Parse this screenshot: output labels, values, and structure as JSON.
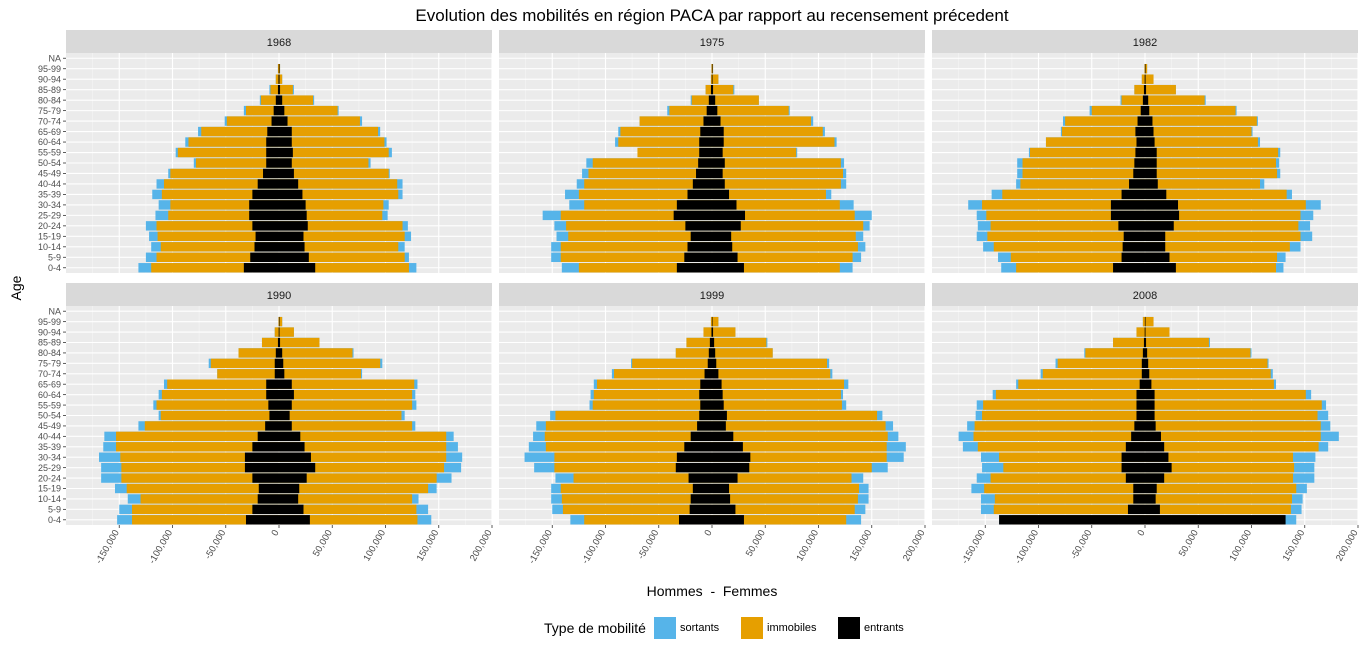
{
  "chart_data": {
    "type": "bar",
    "title": "Evolution des mobilités en région PACA par rapport au recensement précedent",
    "xlabel": "Hommes  -  Femmes",
    "ylabel": "Age",
    "xlim": [
      -200000,
      200000
    ],
    "x_ticks": [
      -150000,
      -100000,
      -50000,
      0,
      50000,
      100000,
      150000,
      200000
    ],
    "x_tick_labels": [
      "-150,000",
      "-100,000",
      "-50,000",
      "0",
      "50,000",
      "100,000",
      "150,000",
      "200,000"
    ],
    "categories": [
      "0-4",
      "5-9",
      "10-14",
      "15-19",
      "20-24",
      "25-29",
      "30-34",
      "35-39",
      "40-44",
      "45-49",
      "50-54",
      "55-59",
      "60-64",
      "65-69",
      "70-74",
      "75-79",
      "80-84",
      "85-89",
      "90-94",
      "95-99",
      "NA"
    ],
    "legend": {
      "title": "Type de mobilité",
      "position": "bottom",
      "items": [
        {
          "key": "sortants",
          "label": "sortants",
          "color": "#56B4E9"
        },
        {
          "key": "immobiles",
          "label": "immobiles",
          "color": "#E69F00"
        },
        {
          "key": "entrants",
          "label": "entrants",
          "color": "#000000"
        }
      ]
    },
    "panels": [
      {
        "label": "1968",
        "men": {
          "sortants": [
            132000,
            125000,
            120000,
            122000,
            125000,
            116000,
            113000,
            119000,
            115000,
            104000,
            80000,
            97000,
            88000,
            76000,
            51000,
            33000,
            18000,
            9000,
            3000,
            1000,
            0
          ],
          "immobiles": [
            120000,
            115000,
            111000,
            114000,
            115000,
            104000,
            102000,
            110000,
            108000,
            102000,
            78000,
            95000,
            85000,
            73000,
            49000,
            31000,
            17000,
            8000,
            3000,
            1000,
            0
          ],
          "entrants": [
            33000,
            27000,
            23000,
            22000,
            25000,
            28000,
            28000,
            25000,
            20000,
            15000,
            12000,
            12000,
            12000,
            11000,
            7000,
            5000,
            3000,
            1000,
            500,
            200,
            0
          ]
        },
        "women": {
          "sortants": [
            129000,
            122000,
            118000,
            124000,
            121000,
            102000,
            103000,
            116000,
            116000,
            104000,
            86000,
            106000,
            101000,
            95000,
            78000,
            56000,
            33000,
            14000,
            3000,
            1000,
            0
          ],
          "immobiles": [
            122000,
            118000,
            112000,
            118000,
            116000,
            97000,
            98000,
            112000,
            111000,
            103000,
            84000,
            103000,
            99000,
            93000,
            76000,
            55000,
            32000,
            13000,
            3000,
            1000,
            0
          ],
          "entrants": [
            34000,
            28000,
            24000,
            23000,
            27000,
            26000,
            25000,
            22000,
            18000,
            14000,
            12000,
            13000,
            12000,
            12000,
            8000,
            5000,
            3000,
            1000,
            500,
            200,
            0
          ]
        }
      },
      {
        "label": "1975",
        "men": {
          "sortants": [
            141000,
            151000,
            151000,
            146000,
            148000,
            159000,
            134000,
            138000,
            127000,
            122000,
            118000,
            68000,
            91000,
            88000,
            68000,
            42000,
            20000,
            6000,
            1000,
            500,
            0
          ],
          "immobiles": [
            125000,
            142000,
            142000,
            135000,
            137000,
            142000,
            120000,
            125000,
            120000,
            116000,
            112000,
            70000,
            88000,
            86000,
            68000,
            40000,
            19000,
            6000,
            1000,
            500,
            0
          ],
          "entrants": [
            33000,
            26000,
            23000,
            20000,
            25000,
            36000,
            33000,
            23000,
            18000,
            15000,
            13000,
            12000,
            12000,
            11000,
            8000,
            5000,
            3000,
            1000,
            200,
            100,
            0
          ]
        },
        "women": {
          "sortants": [
            132000,
            140000,
            144000,
            142000,
            148000,
            150000,
            133000,
            112000,
            126000,
            126000,
            124000,
            80000,
            117000,
            106000,
            95000,
            73000,
            44000,
            21000,
            6000,
            1000,
            0
          ],
          "immobiles": [
            120000,
            132000,
            137000,
            135000,
            142000,
            134000,
            120000,
            107000,
            121000,
            123000,
            121000,
            79000,
            115000,
            104000,
            93000,
            72000,
            44000,
            20000,
            6000,
            1000,
            0
          ],
          "entrants": [
            30000,
            24000,
            19000,
            18000,
            27000,
            31000,
            23000,
            16000,
            12000,
            10000,
            12000,
            10000,
            11000,
            11000,
            8000,
            5000,
            3000,
            1000,
            300,
            100,
            0
          ]
        }
      },
      {
        "label": "1982",
        "men": {
          "sortants": [
            135000,
            138000,
            152000,
            158000,
            157000,
            158000,
            166000,
            144000,
            121000,
            120000,
            120000,
            109000,
            93000,
            79000,
            77000,
            52000,
            23000,
            10000,
            3000,
            500,
            0
          ],
          "immobiles": [
            121000,
            126000,
            142000,
            148000,
            145000,
            149000,
            153000,
            134000,
            117000,
            115000,
            115000,
            108000,
            93000,
            78000,
            75000,
            50000,
            22000,
            10000,
            3000,
            500,
            0
          ],
          "entrants": [
            30000,
            22000,
            21000,
            20000,
            25000,
            32000,
            32000,
            22000,
            15000,
            11000,
            10000,
            9000,
            8000,
            9000,
            7000,
            4000,
            2000,
            1000,
            300,
            100,
            0
          ]
        },
        "women": {
          "sortants": [
            130000,
            132000,
            146000,
            157000,
            155000,
            158000,
            165000,
            138000,
            112000,
            127000,
            126000,
            127000,
            108000,
            101000,
            106000,
            86000,
            57000,
            29000,
            8000,
            2000,
            0
          ],
          "immobiles": [
            123000,
            124000,
            136000,
            146000,
            144000,
            146000,
            151000,
            133000,
            108000,
            124000,
            123000,
            125000,
            106000,
            100000,
            105000,
            85000,
            56000,
            29000,
            8000,
            2000,
            0
          ],
          "entrants": [
            29000,
            23000,
            19000,
            19000,
            27000,
            32000,
            31000,
            20000,
            12000,
            11000,
            11000,
            11000,
            9000,
            8000,
            7000,
            4000,
            3000,
            1000,
            500,
            100,
            0
          ]
        }
      },
      {
        "label": "1990",
        "men": {
          "sortants": [
            152000,
            150000,
            142000,
            154000,
            167000,
            167000,
            169000,
            165000,
            164000,
            132000,
            113000,
            118000,
            113000,
            108000,
            58000,
            66000,
            38000,
            16000,
            4000,
            500,
            0
          ],
          "immobiles": [
            138000,
            138000,
            130000,
            143000,
            148000,
            148000,
            149000,
            153000,
            153000,
            126000,
            111000,
            115000,
            110000,
            105000,
            58000,
            64000,
            38000,
            16000,
            4000,
            500,
            0
          ],
          "entrants": [
            31000,
            25000,
            20000,
            19000,
            25000,
            32000,
            32000,
            25000,
            20000,
            13000,
            9000,
            10000,
            12000,
            12000,
            4000,
            4000,
            3000,
            1000,
            300,
            100,
            0
          ]
        },
        "women": {
          "sortants": [
            143000,
            140000,
            131000,
            148000,
            162000,
            171000,
            172000,
            168000,
            164000,
            128000,
            118000,
            129000,
            128000,
            130000,
            78000,
            97000,
            70000,
            38000,
            14000,
            3000,
            0
          ],
          "immobiles": [
            130000,
            129000,
            125000,
            140000,
            148000,
            155000,
            157000,
            157000,
            157000,
            125000,
            115000,
            125000,
            125000,
            127000,
            77000,
            95000,
            69000,
            38000,
            14000,
            3000,
            0
          ],
          "entrants": [
            29000,
            23000,
            18000,
            19000,
            26000,
            34000,
            30000,
            24000,
            20000,
            12000,
            10000,
            12000,
            14000,
            12000,
            5000,
            4000,
            3000,
            1000,
            300,
            100,
            0
          ]
        }
      },
      {
        "label": "1999",
        "men": {
          "sortants": [
            133000,
            150000,
            151000,
            151000,
            147000,
            167000,
            176000,
            172000,
            168000,
            165000,
            152000,
            115000,
            114000,
            111000,
            94000,
            76000,
            34000,
            24000,
            8000,
            1000,
            0
          ],
          "immobiles": [
            120000,
            140000,
            141000,
            142000,
            130000,
            148000,
            148000,
            156000,
            157000,
            156000,
            147000,
            112000,
            111000,
            108000,
            92000,
            75000,
            34000,
            24000,
            8000,
            1000,
            0
          ],
          "entrants": [
            31000,
            21000,
            20000,
            18000,
            22000,
            34000,
            33000,
            26000,
            20000,
            14000,
            12000,
            11000,
            12000,
            11000,
            7000,
            4000,
            3000,
            2000,
            500,
            100,
            0
          ]
        },
        "women": {
          "sortants": [
            140000,
            144000,
            147000,
            147000,
            142000,
            165000,
            180000,
            182000,
            175000,
            170000,
            160000,
            126000,
            123000,
            128000,
            113000,
            110000,
            57000,
            52000,
            22000,
            6000,
            0
          ],
          "immobiles": [
            126000,
            134000,
            137000,
            138000,
            131000,
            150000,
            164000,
            164000,
            165000,
            163000,
            155000,
            122000,
            121000,
            124000,
            111000,
            108000,
            57000,
            51000,
            22000,
            6000,
            0
          ],
          "entrants": [
            30000,
            22000,
            17000,
            16000,
            24000,
            35000,
            36000,
            29000,
            20000,
            13000,
            14000,
            11000,
            10000,
            9000,
            6000,
            4000,
            3000,
            2000,
            1000,
            200,
            0
          ]
        }
      },
      {
        "label": "2008",
        "men": {
          "sortants": [
            137000,
            154000,
            154000,
            163000,
            158000,
            153000,
            154000,
            171000,
            175000,
            167000,
            159000,
            158000,
            143000,
            121000,
            98000,
            84000,
            57000,
            30000,
            8000,
            2000,
            0
          ],
          "immobiles": [
            125000,
            142000,
            141000,
            151000,
            145000,
            133000,
            137000,
            157000,
            161000,
            160000,
            153000,
            152000,
            140000,
            119000,
            96000,
            82000,
            56000,
            30000,
            8000,
            2000,
            0
          ],
          "entrants": [
            137000,
            16000,
            11000,
            11000,
            18000,
            22000,
            22000,
            18000,
            13000,
            10000,
            8000,
            8000,
            8000,
            5000,
            3000,
            3000,
            2000,
            1000,
            300,
            100,
            0
          ]
        },
        "women": {
          "sortants": [
            142000,
            147000,
            148000,
            152000,
            159000,
            159000,
            160000,
            172000,
            182000,
            174000,
            172000,
            170000,
            156000,
            123000,
            120000,
            116000,
            100000,
            61000,
            23000,
            8000,
            0
          ],
          "immobiles": [
            130000,
            137000,
            138000,
            142000,
            139000,
            140000,
            139000,
            163000,
            165000,
            165000,
            162000,
            166000,
            151000,
            121000,
            118000,
            115000,
            99000,
            60000,
            23000,
            8000,
            0
          ],
          "entrants": [
            132000,
            14000,
            10000,
            11000,
            18000,
            25000,
            22000,
            18000,
            15000,
            10000,
            9000,
            9000,
            9000,
            6000,
            4000,
            3000,
            2000,
            1000,
            300,
            100,
            0
          ]
        }
      }
    ]
  }
}
